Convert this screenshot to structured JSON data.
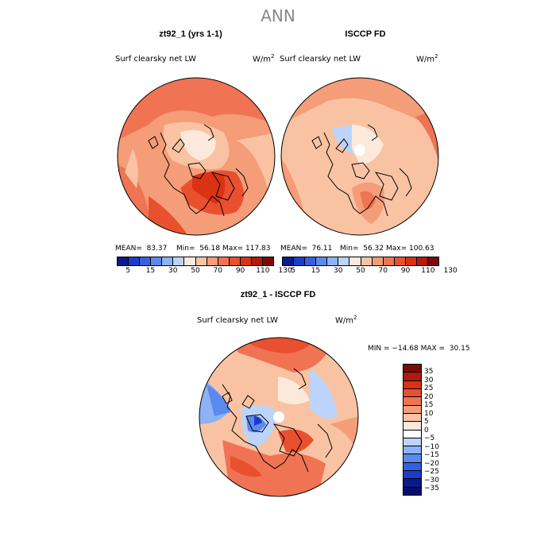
{
  "figure_title": "ANN",
  "panels": [
    {
      "title": "zt92_1 (yrs 1-1)",
      "variable": "Surf clearsky net LW",
      "units_base": "W/m",
      "units_exp": "2",
      "mean": "MEAN=  83.37",
      "min": "Min=  56.18",
      "max": "Max= 117.83"
    },
    {
      "title": "ISCCP FD",
      "variable": "Surf clearsky net LW",
      "units_base": "W/m",
      "units_exp": "2",
      "mean": "MEAN=  76.11",
      "min": "Min=  56.32",
      "max": "Max= 100.63"
    }
  ],
  "diff_panel": {
    "title": "zt92_1 - ISCCP FD",
    "variable": "Surf clearsky net LW",
    "units_base": "W/m",
    "units_exp": "2",
    "minmax": "MIN = −14.68 MAX =  30.15"
  },
  "colorbar_top": {
    "ticks": [
      "5",
      "15",
      "30",
      "50",
      "70",
      "90",
      "110",
      "130"
    ],
    "colors": [
      "#0a1a8c",
      "#1d3ccc",
      "#3561e0",
      "#5b89ef",
      "#8db2f5",
      "#bcd4fa",
      "#fde9dc",
      "#f9c3a3",
      "#f59c79",
      "#f07353",
      "#e9502f",
      "#d93214",
      "#b31a0b",
      "#7a0b07"
    ]
  },
  "colorbar_diff": {
    "ticks": [
      "35",
      "30",
      "25",
      "20",
      "15",
      "10",
      "5",
      "0",
      "−5",
      "−10",
      "−15",
      "−20",
      "−25",
      "−30",
      "−35"
    ],
    "colors": [
      "#7a0b07",
      "#b31a0b",
      "#d93214",
      "#e9502f",
      "#f07353",
      "#f59c79",
      "#f9c3a3",
      "#fde9dc",
      "#ffffff",
      "#bcd4fa",
      "#8db2f5",
      "#5b89ef",
      "#3561e0",
      "#1d3ccc",
      "#0a1a8c",
      "#050f6a"
    ]
  }
}
